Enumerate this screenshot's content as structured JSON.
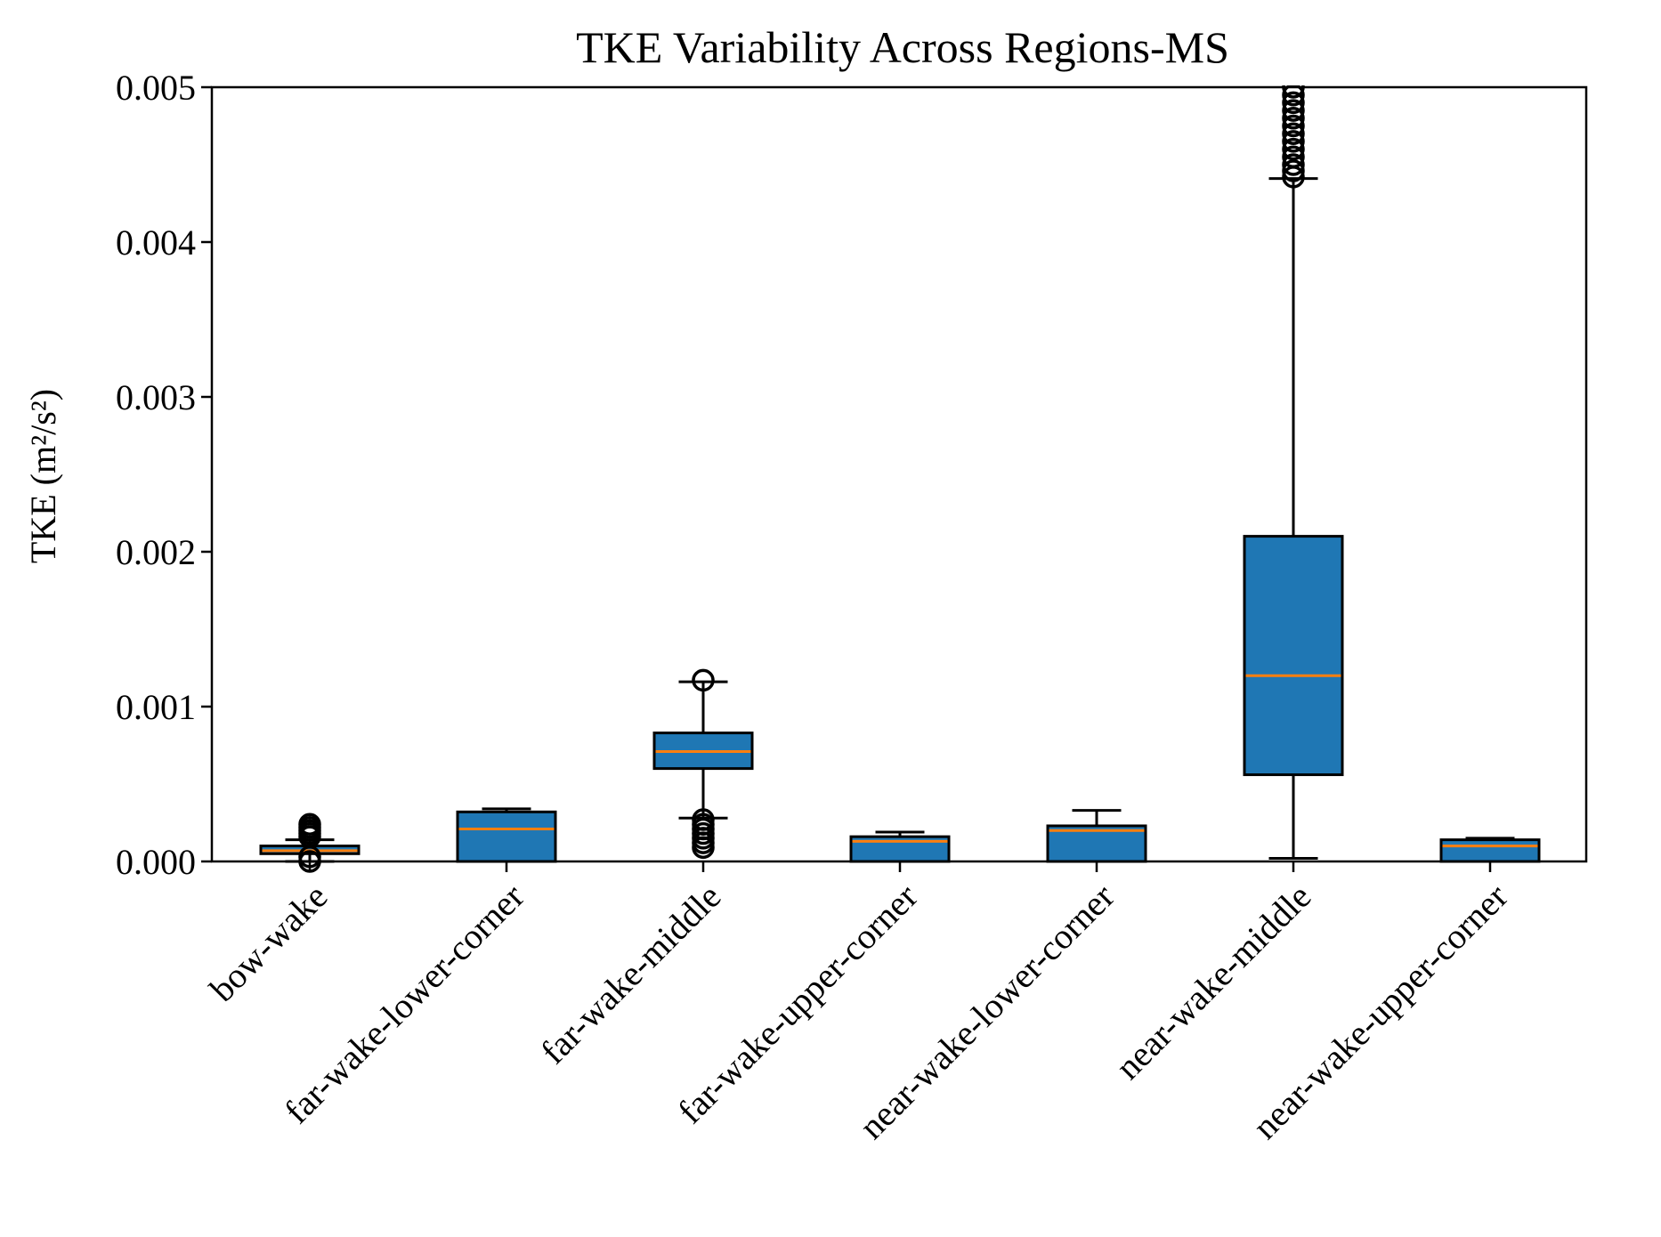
{
  "chart_data": {
    "type": "box",
    "title": "TKE Variability Across Regions-MS",
    "xlabel": "",
    "ylabel": "TKE (m²/s²)",
    "ylim": [
      0,
      0.005
    ],
    "yticks": [
      "0.000",
      "0.001",
      "0.002",
      "0.003",
      "0.004",
      "0.005"
    ],
    "ytick_values": [
      0,
      0.001,
      0.002,
      0.003,
      0.004,
      0.005
    ],
    "grid": false,
    "colors": {
      "box_fill": "#1f77b4",
      "median": "#ff7f0e",
      "line": "#000000"
    },
    "categories": [
      "bow-wake",
      "far-wake-lower-corner",
      "far-wake-middle",
      "far-wake-upper-corner",
      "near-wake-lower-corner",
      "near-wake-middle",
      "near-wake-upper-corner"
    ],
    "boxes": [
      {
        "whisker_low": 0.0,
        "q1": 5e-05,
        "median": 7e-05,
        "q3": 0.0001,
        "whisker_high": 0.00014,
        "outliers": [
          0.0,
          3e-05,
          0.00016,
          0.00018,
          0.0002,
          0.00022,
          0.00024
        ]
      },
      {
        "whisker_low": 0.0,
        "q1": 0.0,
        "median": 0.00021,
        "q3": 0.00032,
        "whisker_high": 0.00034,
        "outliers": []
      },
      {
        "whisker_low": 0.00028,
        "q1": 0.0006,
        "median": 0.00071,
        "q3": 0.00083,
        "whisker_high": 0.00116,
        "outliers": [
          9e-05,
          0.00012,
          0.00015,
          0.00018,
          0.00021,
          0.00024,
          0.00027,
          0.00117
        ]
      },
      {
        "whisker_low": 0.0,
        "q1": 0.0,
        "median": 0.00013,
        "q3": 0.00016,
        "whisker_high": 0.00019,
        "outliers": []
      },
      {
        "whisker_low": 0.0,
        "q1": 0.0,
        "median": 0.0002,
        "q3": 0.00023,
        "whisker_high": 0.00033,
        "outliers": []
      },
      {
        "whisker_low": 2e-05,
        "q1": 0.00056,
        "median": 0.0012,
        "q3": 0.0021,
        "whisker_high": 0.00441,
        "outliers": [
          0.00442,
          0.00446,
          0.0045,
          0.00455,
          0.0046,
          0.00465,
          0.0047,
          0.00475,
          0.0048,
          0.00485,
          0.0049,
          0.00495,
          0.005
        ]
      },
      {
        "whisker_low": 0.0,
        "q1": 0.0,
        "median": 0.0001,
        "q3": 0.00014,
        "whisker_high": 0.00015,
        "outliers": []
      }
    ]
  }
}
